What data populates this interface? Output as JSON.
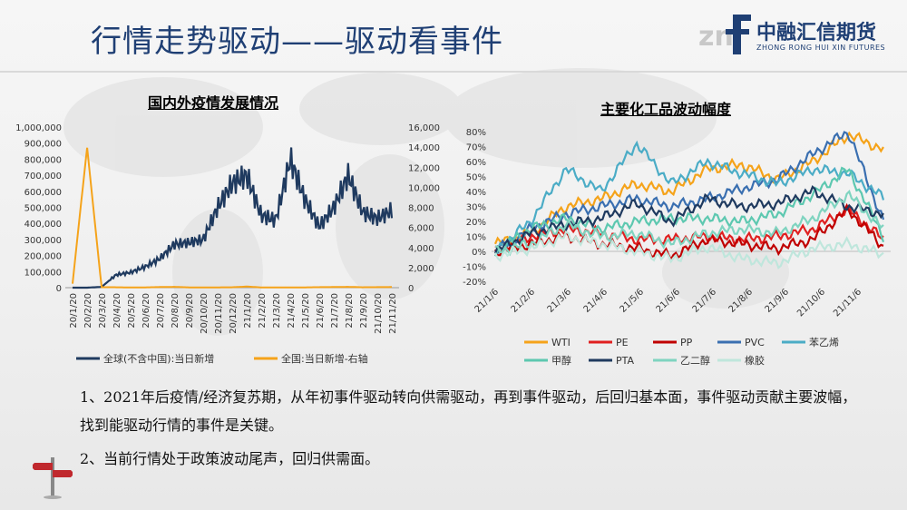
{
  "header": {
    "title": "行情走势驱动——驱动看事件",
    "logo_cn": "中融汇信期货",
    "logo_en": "ZHONG RONG HUI XIN FUTURES",
    "accent": "#1f3f74"
  },
  "chart_data": [
    {
      "type": "line",
      "title": "国内外疫情发展情况",
      "x_ticks": [
        "20/1/20",
        "20/2/20",
        "20/3/20",
        "20/4/20",
        "20/5/20",
        "20/6/20",
        "20/7/20",
        "20/8/20",
        "20/9/20",
        "20/10/20",
        "20/11/20",
        "20/12/20",
        "21/1/20",
        "21/2/20",
        "21/3/20",
        "21/4/20",
        "21/5/20",
        "21/6/20",
        "21/7/20",
        "21/8/20",
        "21/9/20",
        "21/10/20",
        "21/11/20"
      ],
      "y_left_ticks": [
        "0",
        "100,000",
        "200,000",
        "300,000",
        "400,000",
        "500,000",
        "600,000",
        "700,000",
        "800,000",
        "900,000",
        "1,000,000"
      ],
      "y_right_ticks": [
        "0",
        "2,000",
        "4,000",
        "6,000",
        "8,000",
        "10,000",
        "12,000",
        "14,000",
        "16,000"
      ],
      "ylim_left": [
        0,
        1000000
      ],
      "ylim_right": [
        0,
        16000
      ],
      "series": [
        {
          "name": "全球(不含中国):当日新增",
          "axis": "left",
          "color": "#1f3a5f",
          "values": [
            0,
            0,
            5000,
            80000,
            95000,
            130000,
            180000,
            270000,
            280000,
            300000,
            500000,
            650000,
            700000,
            450000,
            420000,
            800000,
            550000,
            380000,
            500000,
            700000,
            470000,
            430000,
            480000
          ]
        },
        {
          "name": "全国:当日新增-右轴",
          "axis": "right",
          "color": "#f5a31a",
          "values": [
            400,
            14000,
            50,
            40,
            20,
            30,
            60,
            80,
            30,
            20,
            30,
            40,
            110,
            20,
            30,
            20,
            30,
            50,
            60,
            80,
            40,
            50,
            60
          ]
        }
      ]
    },
    {
      "type": "line",
      "title": "主要化工品波动幅度",
      "x_ticks": [
        "21/1/6",
        "21/2/6",
        "21/3/6",
        "21/4/6",
        "21/5/6",
        "21/6/6",
        "21/7/6",
        "21/8/6",
        "21/9/6",
        "21/10/6",
        "21/11/6"
      ],
      "y_ticks": [
        "-20%",
        "-10%",
        "0%",
        "10%",
        "20%",
        "30%",
        "40%",
        "50%",
        "60%",
        "70%",
        "80%"
      ],
      "ylim": [
        -20,
        80
      ],
      "series": [
        {
          "name": "WTI",
          "color": "#f5a31a",
          "values": [
            5,
            12,
            30,
            35,
            45,
            40,
            55,
            58,
            48,
            60,
            78,
            68
          ]
        },
        {
          "name": "PE",
          "color": "#e02020",
          "values": [
            0,
            10,
            15,
            12,
            8,
            8,
            10,
            8,
            10,
            15,
            28,
            8
          ]
        },
        {
          "name": "PP",
          "color": "#c00000",
          "values": [
            0,
            5,
            10,
            5,
            2,
            -3,
            8,
            5,
            2,
            8,
            28,
            3
          ]
        },
        {
          "name": "PVC",
          "color": "#3a6fb0",
          "values": [
            0,
            15,
            25,
            30,
            35,
            30,
            35,
            42,
            48,
            65,
            80,
            20
          ]
        },
        {
          "name": "苯乙烯",
          "color": "#4bacc6",
          "values": [
            0,
            20,
            55,
            40,
            72,
            45,
            60,
            52,
            45,
            55,
            52,
            36
          ]
        },
        {
          "name": "甲醇",
          "color": "#5dc8b0",
          "values": [
            0,
            15,
            22,
            15,
            20,
            22,
            22,
            20,
            25,
            38,
            55,
            10
          ]
        },
        {
          "name": "PTA",
          "color": "#1f3a5f",
          "values": [
            0,
            12,
            18,
            22,
            32,
            20,
            35,
            30,
            32,
            40,
            30,
            25
          ]
        },
        {
          "name": "乙二醇",
          "color": "#7fd4c0",
          "values": [
            0,
            5,
            18,
            10,
            12,
            5,
            12,
            15,
            12,
            22,
            38,
            15
          ]
        },
        {
          "name": "橡胶",
          "color": "#bfe6dc",
          "values": [
            -3,
            2,
            10,
            5,
            0,
            -5,
            3,
            -5,
            -8,
            2,
            5,
            -2
          ]
        }
      ]
    }
  ],
  "text": {
    "para1": "1、2021年后疫情/经济复苏期，从年初事件驱动转向供需驱动，再到事件驱动，后回归基本面，事件驱动贡献主要波幅，找到能驱动行情的事件是关键。",
    "para2": "2、当前行情处于政策波动尾声，回归供需面。"
  }
}
